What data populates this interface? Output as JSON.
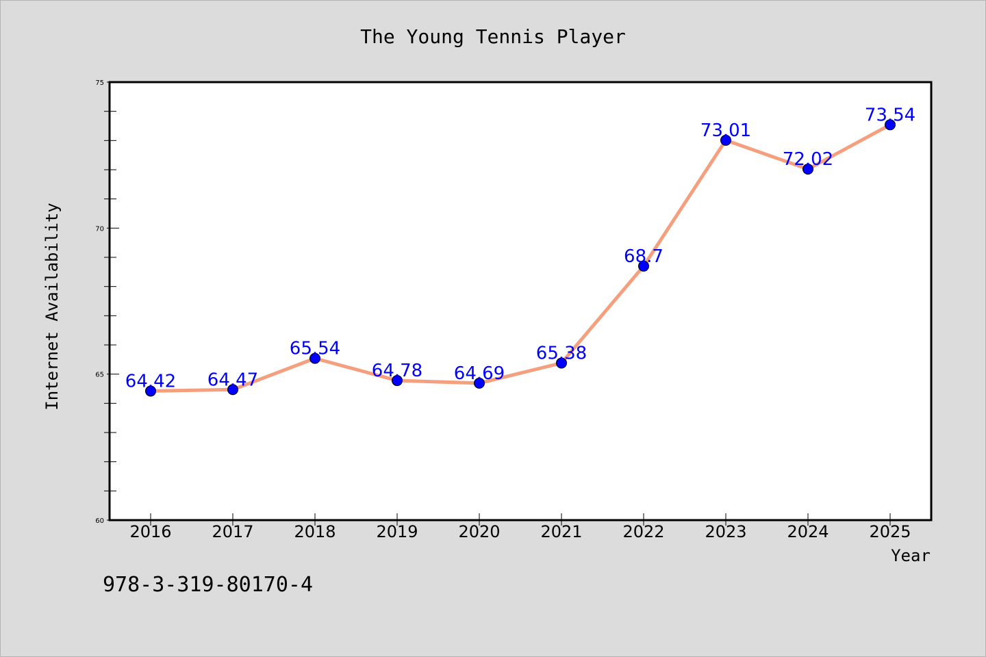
{
  "chart_data": {
    "type": "line",
    "title": "The Young Tennis Player",
    "xlabel": "Year",
    "ylabel": "Internet Availability",
    "categories": [
      "2016",
      "2017",
      "2018",
      "2019",
      "2020",
      "2021",
      "2022",
      "2023",
      "2024",
      "2025"
    ],
    "series": [
      {
        "values": [
          64.42,
          64.47,
          65.54,
          64.78,
          64.69,
          65.38,
          68.7,
          73.01,
          72.02,
          73.54
        ],
        "data_labels": [
          "64.42",
          "64.47",
          "65.54",
          "64.78",
          "64.69",
          "65.38",
          "68.7",
          "73.01",
          "72.02",
          "73.54"
        ],
        "line_color": "#f4a07f",
        "marker_color": "#0000ff"
      }
    ],
    "ylim": [
      60,
      75
    ],
    "yticks": [
      "60",
      "65",
      "70",
      "75"
    ],
    "grid": false,
    "legend": "none",
    "plot_background": "#ffffff",
    "figure_background": "#dcdcdc"
  },
  "footer": {
    "code": "978-3-319-80170-4"
  }
}
